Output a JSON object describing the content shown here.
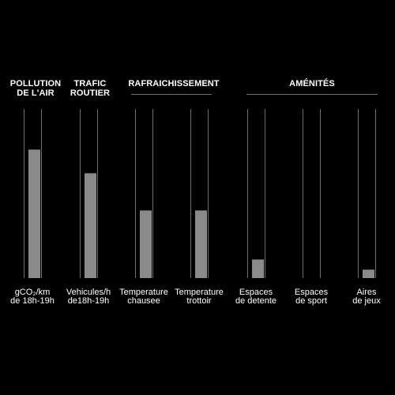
{
  "headers": {
    "pollution_line1": "POLLUTION",
    "pollution_line2": "DE L'AIR",
    "trafic_line1": "TRAFIC",
    "trafic_line2": "ROUTIER",
    "rafraichissement": "RAFRAICHISSEMENT",
    "amenites": "AMÉNITÉS"
  },
  "colors": {
    "background": "#000000",
    "bar": "#8a8a8a",
    "track": "#6e6e6e",
    "text": "#ffffff"
  },
  "chart_data": {
    "type": "bar",
    "categories": [
      [
        "gCO₂/km",
        "de 18h-19h"
      ],
      [
        "Vehicules/h",
        "de18h-19h"
      ],
      [
        "Temperature",
        "chausee"
      ],
      [
        "Temperature",
        "trottoir"
      ],
      [
        "Espaces",
        "de detente"
      ],
      [
        "Espaces",
        "de sport"
      ],
      [
        "Aires",
        "de jeux"
      ]
    ],
    "values": [
      0.76,
      0.62,
      0.4,
      0.4,
      0.11,
      0.0,
      0.05
    ],
    "ylim": [
      0,
      1
    ],
    "grid": false
  }
}
